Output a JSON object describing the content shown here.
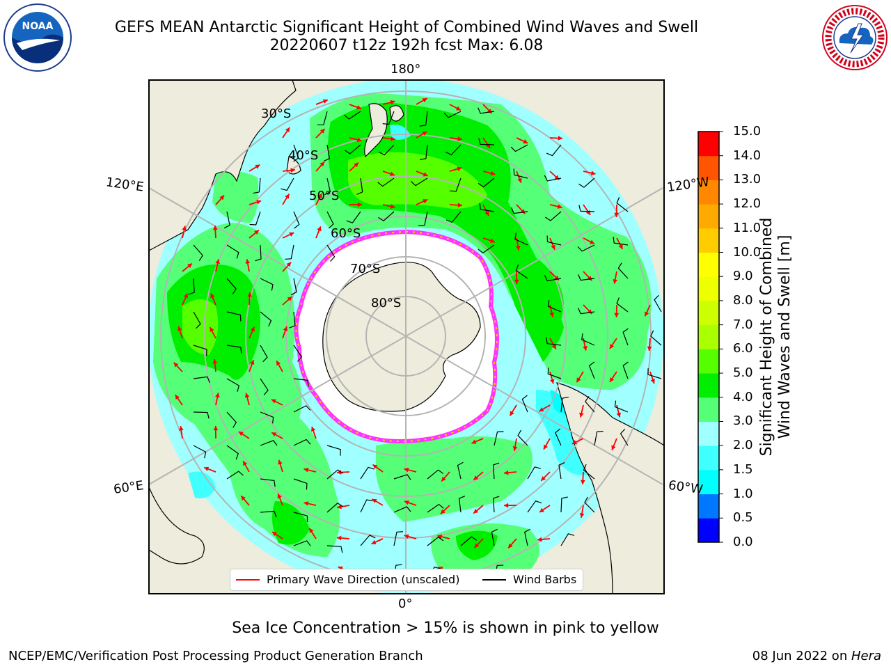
{
  "header": {
    "title_line1": "GEFS MEAN Antarctic Significant Height of Combined Wind Waves and Swell",
    "title_line2": "20220607 t12z 192h fcst   Max: 6.08"
  },
  "logos": {
    "left": {
      "icon": "noaa-logo",
      "text": "NOAA",
      "ring_text": "NATIONAL OCEANIC AND ATMOSPHERIC ADMINISTRATION · U.S. DEPARTMENT OF COMMERCE"
    },
    "right": {
      "icon": "nws-logo",
      "ring_text": "NATIONAL WEATHER SERVICE"
    }
  },
  "map": {
    "projection": "south-polar-stereographic",
    "longitude_labels": {
      "top": "180°",
      "bottom": "0°",
      "upper_left": "120°E",
      "upper_right": "120°W",
      "lower_left": "60°E",
      "lower_right": "60°W"
    },
    "latitude_labels": [
      "30°S",
      "40°S",
      "50°S",
      "60°S",
      "70°S",
      "80°S"
    ],
    "colors": {
      "land": "#eeecdc",
      "ocean_low": "#a0ffff",
      "ice_edge": "#ff33ff",
      "ice": "#ffffff",
      "graticule": "#b4b4b4"
    }
  },
  "legend": {
    "items": [
      {
        "label": "Primary Wave Direction (unscaled)",
        "color": "#ff0000"
      },
      {
        "label": "Wind Barbs",
        "color": "#000000"
      }
    ]
  },
  "colorbar": {
    "label_line1": "Significant Height of Combined",
    "label_line2": "Wind Waves and Swell [m]",
    "ticks": [
      "15.0",
      "14.0",
      "13.0",
      "12.0",
      "11.0",
      "10.0",
      "9.0",
      "8.0",
      "7.0",
      "6.0",
      "5.0",
      "4.0",
      "3.0",
      "2.0",
      "1.5",
      "1.0",
      "0.5",
      "0.0"
    ],
    "bins": [
      {
        "from": 0.0,
        "to": 0.5,
        "color": "#0000ff"
      },
      {
        "from": 0.5,
        "to": 1.0,
        "color": "#0077ff"
      },
      {
        "from": 1.0,
        "to": 1.5,
        "color": "#00ffff"
      },
      {
        "from": 1.5,
        "to": 2.0,
        "color": "#40ffff"
      },
      {
        "from": 2.0,
        "to": 3.0,
        "color": "#a0ffff"
      },
      {
        "from": 3.0,
        "to": 4.0,
        "color": "#55ff77"
      },
      {
        "from": 4.0,
        "to": 5.0,
        "color": "#00ee00"
      },
      {
        "from": 5.0,
        "to": 6.0,
        "color": "#55ff00"
      },
      {
        "from": 6.0,
        "to": 7.0,
        "color": "#aaff00"
      },
      {
        "from": 7.0,
        "to": 8.0,
        "color": "#ccff00"
      },
      {
        "from": 8.0,
        "to": 9.0,
        "color": "#eeff00"
      },
      {
        "from": 9.0,
        "to": 10.0,
        "color": "#ffff00"
      },
      {
        "from": 10.0,
        "to": 11.0,
        "color": "#ffcc00"
      },
      {
        "from": 11.0,
        "to": 12.0,
        "color": "#ffaa00"
      },
      {
        "from": 12.0,
        "to": 13.0,
        "color": "#ff8800"
      },
      {
        "from": 13.0,
        "to": 14.0,
        "color": "#ff5500"
      },
      {
        "from": 14.0,
        "to": 15.0,
        "color": "#ff0000"
      }
    ]
  },
  "caption": "Sea Ice Concentration > 15% is shown in pink to yellow",
  "footer": {
    "left": "NCEP/EMC/Verification Post Processing Product Generation Branch",
    "right_prefix": "08 Jun 2022 on ",
    "right_host": "Hera"
  }
}
